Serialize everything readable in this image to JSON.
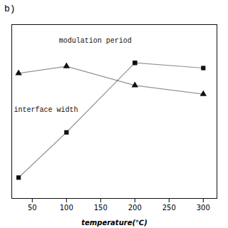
{
  "chart_data": {
    "type": "line",
    "title": "b)",
    "xlabel": "temperature(℃)",
    "annotations": [
      "modulation period",
      "interface width"
    ],
    "series": [
      {
        "marker": "triangle",
        "color": "#111111",
        "x": [
          30,
          100,
          200,
          300
        ],
        "values": [
          7.2,
          7.6,
          6.5,
          6.0
        ]
      },
      {
        "marker": "square",
        "color": "#111111",
        "x": [
          200,
          300
        ],
        "values": [
          7.8,
          7.5
        ]
      },
      {
        "marker": "square",
        "color": "#111111",
        "x": [
          30,
          100,
          200
        ],
        "values": [
          1.2,
          3.8,
          7.8
        ]
      }
    ],
    "xlim": [
      20,
      320
    ],
    "xticks": [
      50,
      100,
      150,
      200,
      250,
      300
    ],
    "ylim": [
      0.0,
      10.0
    ],
    "tick_labels": "x",
    "grid": false
  }
}
